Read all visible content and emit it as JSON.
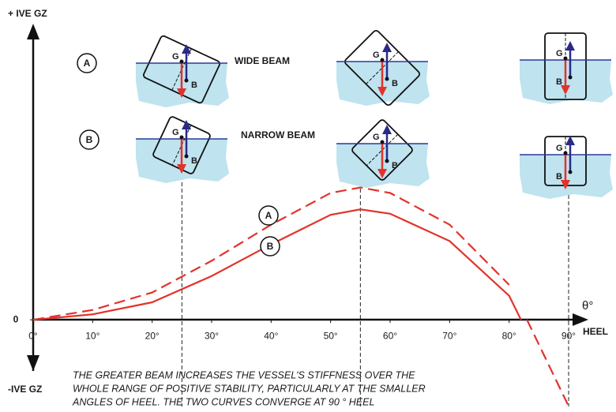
{
  "chart_data": {
    "type": "line",
    "x_label": "HEEL",
    "x_symbol": "θ°",
    "y_label_top": "+ IVE GZ",
    "y_label_bottom": "-IVE GZ",
    "xlim": [
      0,
      90
    ],
    "ylim": [
      -80,
      260
    ],
    "xticks": [
      {
        "value": 0,
        "label": "0°"
      },
      {
        "value": 10,
        "label": "10°"
      },
      {
        "value": 20,
        "label": "20°"
      },
      {
        "value": 30,
        "label": "30°"
      },
      {
        "value": 40,
        "label": "40°"
      },
      {
        "value": 50,
        "label": "50°"
      },
      {
        "value": 60,
        "label": "60°"
      },
      {
        "value": 70,
        "label": "70°"
      },
      {
        "value": 80,
        "label": "80°"
      },
      {
        "value": 90,
        "label": "90°"
      }
    ],
    "yticks": [
      0
    ],
    "x": [
      0,
      10,
      20,
      30,
      40,
      50,
      55,
      60,
      70,
      80,
      82,
      83,
      90
    ],
    "series": [
      {
        "name": "A",
        "color": "#e2332b",
        "dashed": true,
        "values": [
          0,
          9,
          25,
          54,
          87,
          116,
          121,
          116,
          87,
          32,
          null,
          0,
          -79
        ]
      },
      {
        "name": "B",
        "color": "#e2332b",
        "dashed": false,
        "values": [
          0,
          5,
          16,
          40,
          69,
          96,
          101,
          97,
          72,
          22,
          0,
          null,
          -79
        ]
      }
    ],
    "reference_angles": [
      25,
      55,
      90
    ],
    "beam_labels": [
      "WIDE BEAM",
      "NARROW BEAM"
    ],
    "point_labels": {
      "g": "G",
      "b": "B"
    },
    "note": [
      "THE GREATER BEAM INCREASES THE VESSEL'S STIFFNESS OVER THE",
      "WHOLE RANGE OF POSITIVE STABILITY, PARTICULARLY AT THE SMALLER",
      "ANGLES OF HEEL. THE TWO CURVES CONVERGE AT 90 ° HEEL"
    ]
  }
}
